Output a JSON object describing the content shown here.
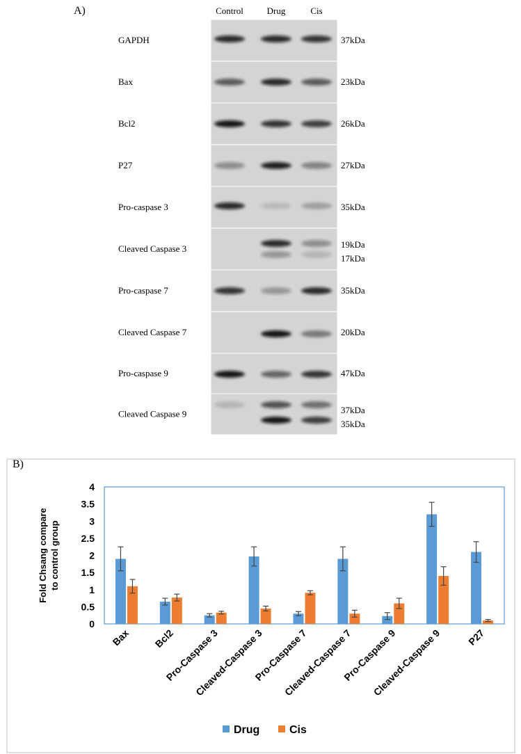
{
  "blot": {
    "panel_label": "A)",
    "lanes": [
      "Control",
      "Drug",
      "Cis"
    ],
    "rows": [
      {
        "name": "GAPDH",
        "sizes": [
          "37kDa"
        ]
      },
      {
        "name": "Bax",
        "sizes": [
          "23kDa"
        ]
      },
      {
        "name": "Bcl2",
        "sizes": [
          "26kDa"
        ]
      },
      {
        "name": "P27",
        "sizes": [
          "27kDa"
        ]
      },
      {
        "name": "Pro-caspase 3",
        "sizes": [
          "35kDa"
        ]
      },
      {
        "name": "Cleaved Caspase 3",
        "sizes": [
          "19kDa",
          "17kDa"
        ]
      },
      {
        "name": "Pro-caspase 7",
        "sizes": [
          "35kDa"
        ]
      },
      {
        "name": "Cleaved Caspase 7",
        "sizes": [
          "20kDa"
        ]
      },
      {
        "name": "Pro-caspase 9",
        "sizes": [
          "47kDa"
        ]
      },
      {
        "name": "Cleaved Caspase 9",
        "sizes": [
          "37kDa",
          "35kDa"
        ]
      }
    ]
  },
  "chart_data": {
    "type": "bar",
    "panel_label": "B)",
    "ylabel": [
      "Fold Chsang compare",
      "to control group"
    ],
    "categories": [
      "Bax",
      "Bcl2",
      "Pro-Caspase 3",
      "Cleaved-Caspase 3",
      "Pro-Caspase 7",
      "Cleaved-Caspase 7",
      "Pro-Caspase 9",
      "Cleaved-Caspase 9",
      "P27"
    ],
    "series": [
      {
        "name": "Drug",
        "color": "#5b9bd5",
        "values": [
          1.9,
          0.65,
          0.25,
          1.97,
          0.3,
          1.9,
          0.23,
          3.2,
          2.1
        ],
        "errors": [
          0.35,
          0.1,
          0.05,
          0.28,
          0.06,
          0.35,
          0.1,
          0.35,
          0.3
        ]
      },
      {
        "name": "Cis",
        "color": "#ed7d31",
        "values": [
          1.1,
          0.77,
          0.33,
          0.45,
          0.91,
          0.3,
          0.6,
          1.4,
          0.1
        ],
        "errors": [
          0.2,
          0.1,
          0.04,
          0.07,
          0.06,
          0.1,
          0.15,
          0.27,
          0.03
        ]
      }
    ],
    "ylim": [
      0,
      4
    ],
    "yticks": [
      0,
      0.5,
      1,
      1.5,
      2,
      2.5,
      3,
      3.5,
      4
    ],
    "grid": false,
    "legend": "bottom"
  }
}
